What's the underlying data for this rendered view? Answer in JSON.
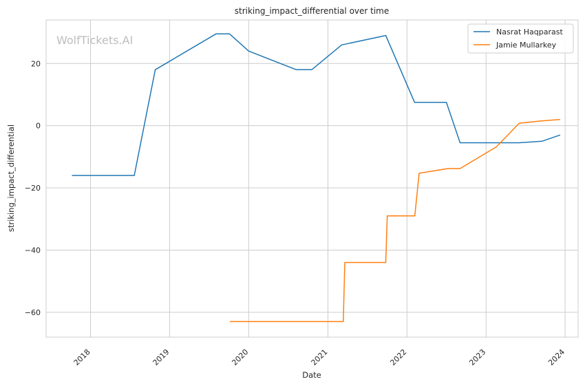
{
  "watermark": "WolfTickets.AI",
  "chart_data": {
    "type": "line",
    "title": "striking_impact_differential over time",
    "xlabel": "Date",
    "ylabel": "striking_impact_differential",
    "x_ticks": [
      "2018",
      "2019",
      "2020",
      "2021",
      "2022",
      "2023",
      "2024"
    ],
    "y_ticks": [
      -60,
      -40,
      -20,
      0,
      20
    ],
    "xlim": [
      "2017-06-10",
      "2024-03-01"
    ],
    "ylim": [
      -68,
      34
    ],
    "grid": true,
    "legend": "top-right",
    "series": [
      {
        "name": "Nasrat Haqparast",
        "color": "#1f77b4",
        "points": [
          [
            "2017-10-07",
            -16
          ],
          [
            "2018-07-22",
            -16
          ],
          [
            "2018-10-27",
            18
          ],
          [
            "2019-08-03",
            29.5
          ],
          [
            "2019-10-05",
            29.5
          ],
          [
            "2020-01-01",
            24
          ],
          [
            "2020-08-08",
            18
          ],
          [
            "2020-10-18",
            18
          ],
          [
            "2021-03-06",
            26
          ],
          [
            "2021-03-20",
            26.2
          ],
          [
            "2021-09-25",
            29
          ],
          [
            "2022-02-05",
            7.5
          ],
          [
            "2022-07-02",
            7.5
          ],
          [
            "2022-09-03",
            -5.5
          ],
          [
            "2023-06-03",
            -5.5
          ],
          [
            "2023-09-16",
            -5
          ],
          [
            "2023-12-09",
            -3
          ]
        ]
      },
      {
        "name": "Jamie Mullarkey",
        "color": "#ff7f0e",
        "points": [
          [
            "2019-10-06",
            -63
          ],
          [
            "2021-03-13",
            -63
          ],
          [
            "2021-03-20",
            -44
          ],
          [
            "2021-09-25",
            -44
          ],
          [
            "2021-10-02",
            -29
          ],
          [
            "2022-02-06",
            -29
          ],
          [
            "2022-02-26",
            -15.3
          ],
          [
            "2022-07-09",
            -13.8
          ],
          [
            "2022-09-03",
            -13.8
          ],
          [
            "2023-02-18",
            -6.8
          ],
          [
            "2023-06-03",
            0.8
          ],
          [
            "2023-09-09",
            1.5
          ],
          [
            "2023-12-09",
            2
          ]
        ]
      }
    ]
  }
}
